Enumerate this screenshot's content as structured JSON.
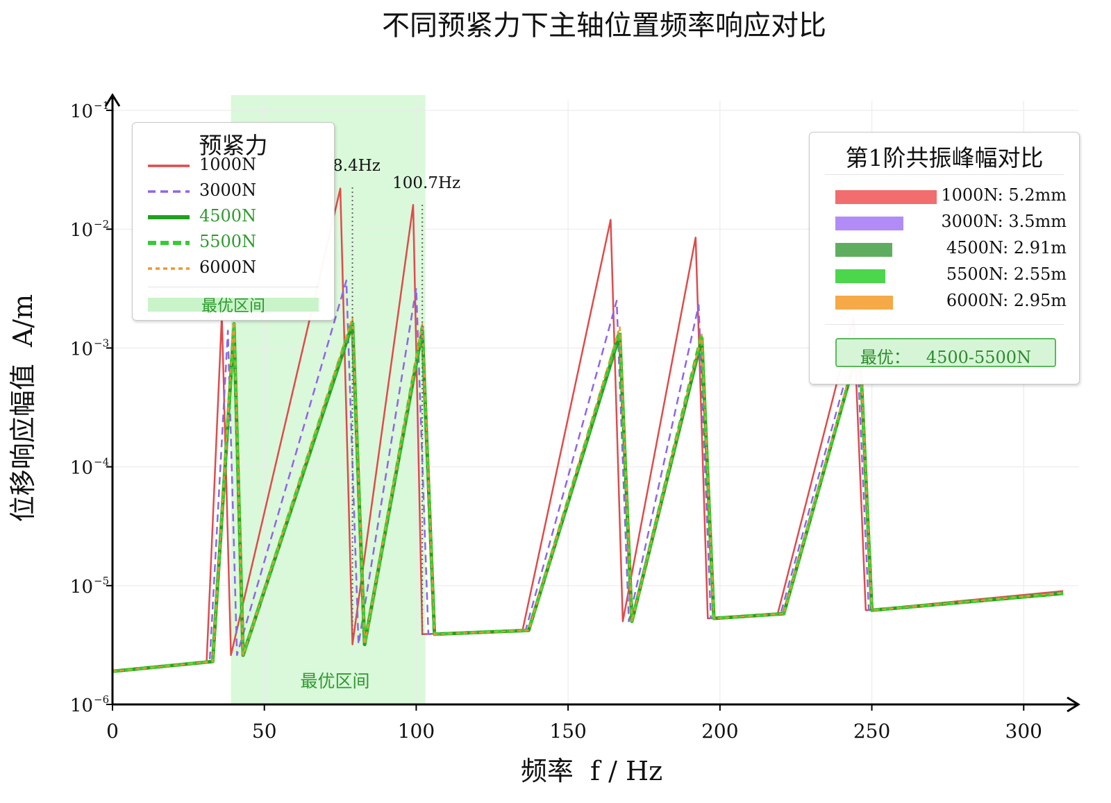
{
  "chart_data": {
    "type": "line",
    "title": "不同预紧力下主轴位置频率响应对比",
    "xlabel": "频率  f / Hz",
    "ylabel": "位移响应幅值  A/m",
    "xlim": [
      0,
      318
    ],
    "ylim": [
      1e-06,
      0.1
    ],
    "yscale": "log",
    "x_ticks": [
      0,
      50,
      100,
      150,
      200,
      250,
      300
    ],
    "y_ticks": [
      {
        "value": 1e-06,
        "base": "10",
        "exp": "−6"
      },
      {
        "value": 1e-05,
        "base": "10",
        "exp": "−5"
      },
      {
        "value": 0.0001,
        "base": "10",
        "exp": "−4"
      },
      {
        "value": 0.001,
        "base": "10",
        "exp": "−3"
      },
      {
        "value": 0.01,
        "base": "10",
        "exp": "−2"
      },
      {
        "value": 0.1,
        "base": "10",
        "exp": "−1"
      }
    ],
    "grid": true,
    "legend_position": "top-left",
    "legend_title": "预紧力",
    "optimal_band": {
      "x": [
        39,
        103
      ],
      "label": "最优区间",
      "legend_label": "最优区间",
      "color": "#d4f7d4"
    },
    "peak_annotations": [
      {
        "x": 79,
        "text": "8.4Hz"
      },
      {
        "x": 102,
        "text": "100.7Hz"
      }
    ],
    "series": [
      {
        "name": "1000N",
        "color": "#e04a4a",
        "dash": "solid",
        "width": 2.5,
        "x": [
          0,
          31,
          36,
          39,
          75,
          79,
          99,
          102,
          135,
          164,
          168,
          192,
          196,
          219,
          244,
          248,
          313
        ],
        "y": [
          1.9e-06,
          2.3e-06,
          0.0019,
          2.6e-06,
          0.022,
          3.2e-06,
          0.016,
          3.9e-06,
          4.2e-06,
          0.012,
          5e-06,
          0.0085,
          5.3e-06,
          5.8e-06,
          0.0018,
          6.2e-06,
          9e-06
        ]
      },
      {
        "name": "3000N",
        "color": "#8f65e8",
        "dash": "11 7",
        "width": 2.5,
        "x": [
          0,
          32,
          38,
          41,
          77,
          81,
          100,
          104,
          136,
          166,
          170,
          193,
          197,
          220,
          245,
          249,
          313
        ],
        "y": [
          1.9e-06,
          2.3e-06,
          0.0014,
          2.6e-06,
          0.0037,
          3.2e-06,
          0.0032,
          3.9e-06,
          4.2e-06,
          0.0025,
          5e-06,
          0.0023,
          5.3e-06,
          5.8e-06,
          0.0012,
          6.2e-06,
          8.8e-06
        ]
      },
      {
        "name": "4500N",
        "color": "#1fa11f",
        "dash": "solid",
        "width": 5,
        "x": [
          0,
          33,
          40,
          43,
          79,
          83,
          102,
          106,
          137,
          167,
          171,
          194,
          198,
          221,
          246,
          250,
          313
        ],
        "y": [
          1.9e-06,
          2.3e-06,
          0.0015,
          2.6e-06,
          0.0016,
          3.2e-06,
          0.0014,
          3.9e-06,
          4.2e-06,
          0.0013,
          5e-06,
          0.0012,
          5.3e-06,
          5.8e-06,
          0.0011,
          6.2e-06,
          8.6e-06
        ]
      },
      {
        "name": "5500N",
        "color": "#34cc34",
        "dash": "12 6",
        "width": 5,
        "x": [
          0,
          33,
          40,
          43,
          79,
          83,
          102,
          106,
          137,
          167,
          171,
          194,
          198,
          221,
          246,
          250,
          313
        ],
        "y": [
          1.9e-06,
          2.3e-06,
          0.0016,
          2.6e-06,
          0.0017,
          3.2e-06,
          0.0015,
          3.9e-06,
          4.2e-06,
          0.0014,
          5e-06,
          0.0013,
          5.3e-06,
          5.8e-06,
          0.0011,
          6.2e-06,
          8.6e-06
        ]
      },
      {
        "name": "6000N",
        "color": "#e89a2e",
        "dash": "6 5",
        "width": 2.5,
        "x": [
          0,
          33,
          40,
          43,
          79,
          83,
          102,
          106,
          137,
          167,
          171,
          194,
          198,
          221,
          246,
          250,
          313
        ],
        "y": [
          1.9e-06,
          2.3e-06,
          0.0018,
          2.6e-06,
          0.0018,
          3.2e-06,
          0.0016,
          3.9e-06,
          4.2e-06,
          0.0015,
          5e-06,
          0.0013,
          5.3e-06,
          5.8e-06,
          0.0012,
          6.2e-06,
          8.7e-06
        ]
      }
    ]
  },
  "amplitude_panel": {
    "title": "第1阶共振峰幅对比",
    "bars": [
      {
        "label": "1000N: 5.2mm",
        "value": 5.2,
        "color": "#f26d6d"
      },
      {
        "label": "3000N: 3.5mm",
        "value": 3.5,
        "color": "#b18cf7"
      },
      {
        "label": "4500N: 2.91m",
        "value": 2.91,
        "color": "#5fae5f"
      },
      {
        "label": "5500N: 2.55m",
        "value": 2.55,
        "color": "#4cd64c"
      },
      {
        "label": "6000N: 2.95m",
        "value": 2.95,
        "color": "#f5a947"
      }
    ],
    "best_text": "最优：   4500-5500N"
  }
}
